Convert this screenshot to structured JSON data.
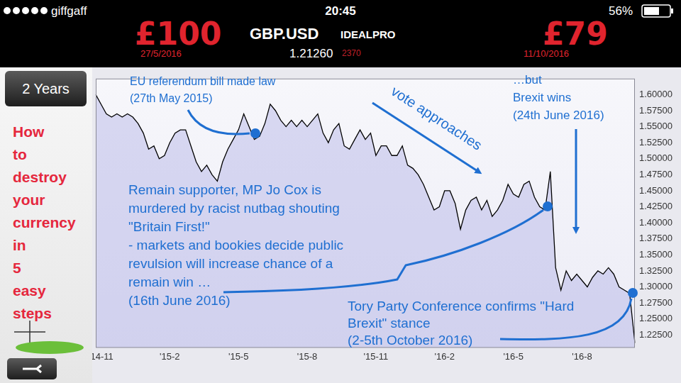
{
  "status_bar": {
    "carrier": "giffgaff",
    "time": "20:45",
    "battery": "56%"
  },
  "header": {
    "left_amount": "£100",
    "left_date": "27/5/2016",
    "symbol": "GBP.USD",
    "exchange": "IDEALPRO",
    "price": "1.21260",
    "change": "2370",
    "right_amount": "£79",
    "right_date": "11/10/2016"
  },
  "left_panel": {
    "button": "2 Years",
    "caption": "How to destroy your currency in 5 easy steps"
  },
  "annotations": [
    {
      "lines": [
        "EU referendum bill made law",
        "(27th May 2015)"
      ]
    },
    {
      "lines": [
        "vote approaches"
      ]
    },
    {
      "lines": [
        "…but",
        "Brexit wins",
        "(24th June 2016)"
      ]
    },
    {
      "lines": [
        "Remain supporter, MP Jo Cox is",
        "murdered by racist nutbag shouting",
        "\"Britain First!\"",
        "- markets and bookies decide public",
        "revulsion will increase chance of a",
        "remain win …",
        "(16th June 2016)"
      ]
    },
    {
      "lines": [
        "Tory Party Conference confirms \"Hard",
        "Brexit\" stance",
        "(2-5th October 2016)"
      ]
    }
  ],
  "chart_data": {
    "type": "line",
    "color": "#000000",
    "grid": false,
    "categories": [
      null,
      "'14-11",
      null,
      null,
      null,
      null,
      null,
      null,
      null,
      null,
      null,
      null,
      null,
      null,
      "'15-2",
      null,
      null,
      null,
      null,
      null,
      null,
      null,
      null,
      null,
      null,
      null,
      null,
      "'15-5",
      null,
      null,
      null,
      null,
      null,
      null,
      null,
      null,
      null,
      null,
      null,
      null,
      "'15-8",
      null,
      null,
      null,
      null,
      null,
      null,
      null,
      null,
      null,
      null,
      null,
      null,
      "'15-11",
      null,
      null,
      null,
      null,
      null,
      null,
      null,
      null,
      null,
      null,
      null,
      null,
      "'16-2",
      null,
      null,
      null,
      null,
      null,
      null,
      null,
      null,
      null,
      null,
      null,
      null,
      "'16-5",
      null,
      null,
      null,
      null,
      null,
      null,
      null,
      null,
      null,
      null,
      null,
      null,
      "'16-8",
      null,
      null,
      null,
      null,
      null,
      null,
      null,
      null,
      null,
      null
    ],
    "values": [
      1.6,
      1.585,
      1.57,
      1.565,
      1.57,
      1.565,
      1.57,
      1.565,
      1.555,
      1.54,
      1.515,
      1.52,
      1.5,
      1.505,
      1.525,
      1.54,
      1.545,
      1.545,
      1.52,
      1.495,
      1.48,
      1.49,
      1.475,
      1.465,
      1.495,
      1.515,
      1.53,
      1.545,
      1.57,
      1.55,
      1.53,
      1.535,
      1.555,
      1.585,
      1.575,
      1.56,
      1.55,
      1.56,
      1.55,
      1.56,
      1.55,
      1.56,
      1.57,
      1.54,
      1.525,
      1.545,
      1.555,
      1.52,
      1.515,
      1.53,
      1.545,
      1.53,
      1.54,
      1.505,
      1.52,
      1.52,
      1.505,
      1.505,
      1.52,
      1.49,
      1.485,
      1.475,
      1.46,
      1.44,
      1.42,
      1.425,
      1.45,
      1.45,
      1.43,
      1.39,
      1.42,
      1.435,
      1.44,
      1.42,
      1.435,
      1.41,
      1.42,
      1.435,
      1.46,
      1.445,
      1.44,
      1.46,
      1.465,
      1.44,
      1.425,
      1.42,
      1.48,
      1.33,
      1.295,
      1.325,
      1.31,
      1.32,
      1.31,
      1.3,
      1.315,
      1.325,
      1.32,
      1.33,
      1.32,
      1.3,
      1.295,
      1.29,
      1.2126
    ],
    "ylim": [
      1.205,
      1.625
    ],
    "yticks": [
      {
        "value": 1.225,
        "label": "1.22500"
      },
      {
        "value": 1.25,
        "label": "1.25000"
      },
      {
        "value": 1.275,
        "label": "1.27500"
      },
      {
        "value": 1.3,
        "label": "1.30000"
      },
      {
        "value": 1.325,
        "label": "1.32500"
      },
      {
        "value": 1.35,
        "label": "1.35000"
      },
      {
        "value": 1.375,
        "label": "1.37500"
      },
      {
        "value": 1.4,
        "label": "1.40000"
      },
      {
        "value": 1.425,
        "label": "1.42500"
      },
      {
        "value": 1.45,
        "label": "1.45000"
      },
      {
        "value": 1.475,
        "label": "1.47500"
      },
      {
        "value": 1.5,
        "label": "1.50000"
      },
      {
        "value": 1.525,
        "label": "1.52500"
      },
      {
        "value": 1.55,
        "label": "1.55000"
      },
      {
        "value": 1.575,
        "label": "1.57500"
      },
      {
        "value": 1.6,
        "label": "1.60000"
      }
    ]
  }
}
